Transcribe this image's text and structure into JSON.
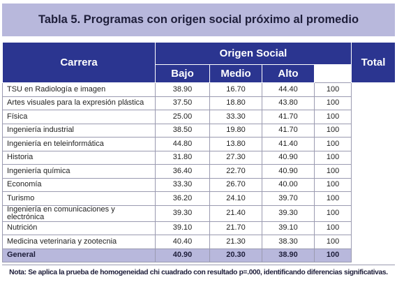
{
  "title": "Tabla 5. Programas con origen social próximo al promedio",
  "table": {
    "header": {
      "carrera": "Carrera",
      "origen": "Origen Social",
      "bajo": "Bajo",
      "medio": "Medio",
      "alto": "Alto",
      "total": "Total"
    },
    "rows": [
      [
        "TSU en Radiología e imagen",
        "38.90",
        "16.70",
        "44.40",
        "100"
      ],
      [
        "Artes visuales para la expresión plástica",
        "37.50",
        "18.80",
        "43.80",
        "100"
      ],
      [
        "Física",
        "25.00",
        "33.30",
        "41.70",
        "100"
      ],
      [
        "Ingeniería industrial",
        "38.50",
        "19.80",
        "41.70",
        "100"
      ],
      [
        "Ingeniería en teleinformática",
        "44.80",
        "13.80",
        "41.40",
        "100"
      ],
      [
        "Historia",
        "31.80",
        "27.30",
        "40.90",
        "100"
      ],
      [
        "Ingeniería química",
        "36.40",
        "22.70",
        "40.90",
        "100"
      ],
      [
        "Economía",
        "33.30",
        "26.70",
        "40.00",
        "100"
      ],
      [
        "Turismo",
        "36.20",
        "24.10",
        "39.70",
        "100"
      ],
      [
        "Ingeniería en comunicaciones y electrónica",
        "39.30",
        "21.40",
        "39.30",
        "100"
      ],
      [
        "Nutrición",
        "39.10",
        "21.70",
        "39.10",
        "100"
      ],
      [
        "Medicina veterinaria y zootecnia",
        "40.40",
        "21.30",
        "38.30",
        "100"
      ]
    ],
    "general": [
      "General",
      "40.90",
      "20.30",
      "38.90",
      "100"
    ]
  },
  "note": "Nota: Se aplica la prueba de homogeneidad chi cuadrado con resultado p=.000, identificando diferencias significativas."
}
